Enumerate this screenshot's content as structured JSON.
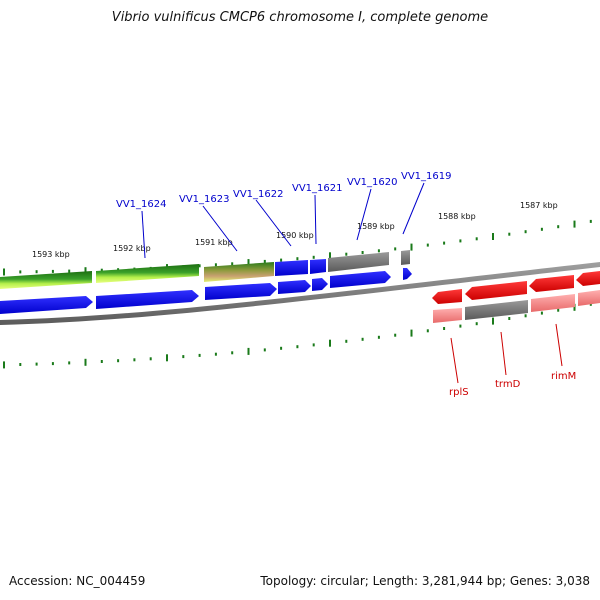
{
  "title": "Vibrio vulnificus CMCP6 chromosome I, complete genome",
  "footer": {
    "accession_text": "Accession: NC_004459",
    "summary_text": "Topology: circular; Length: 3,281,944 bp; Genes: 3,038"
  },
  "colors": {
    "blue_gene": "#0000ee",
    "green_gene": "#2a8a1a",
    "gray_gene": "#707070",
    "red_gene": "#ee1111",
    "pink_gene": "#f08080",
    "tick": "#1a7a1a",
    "backbone": "#7a7a7a",
    "blue_label": "#0000cc",
    "red_label": "#cc0000"
  },
  "tick_labels": [
    "1593 kbp",
    "1592 kbp",
    "1591 kbp",
    "1590 kbp",
    "1589 kbp",
    "1588 kbp",
    "1587 kbp"
  ],
  "gene_labels_top": [
    "VV1_1624",
    "VV1_1623",
    "VV1_1622",
    "VV1_1621",
    "VV1_1620",
    "VV1_1619"
  ],
  "gene_labels_bottom": [
    "rplS",
    "trmD",
    "rimM"
  ]
}
